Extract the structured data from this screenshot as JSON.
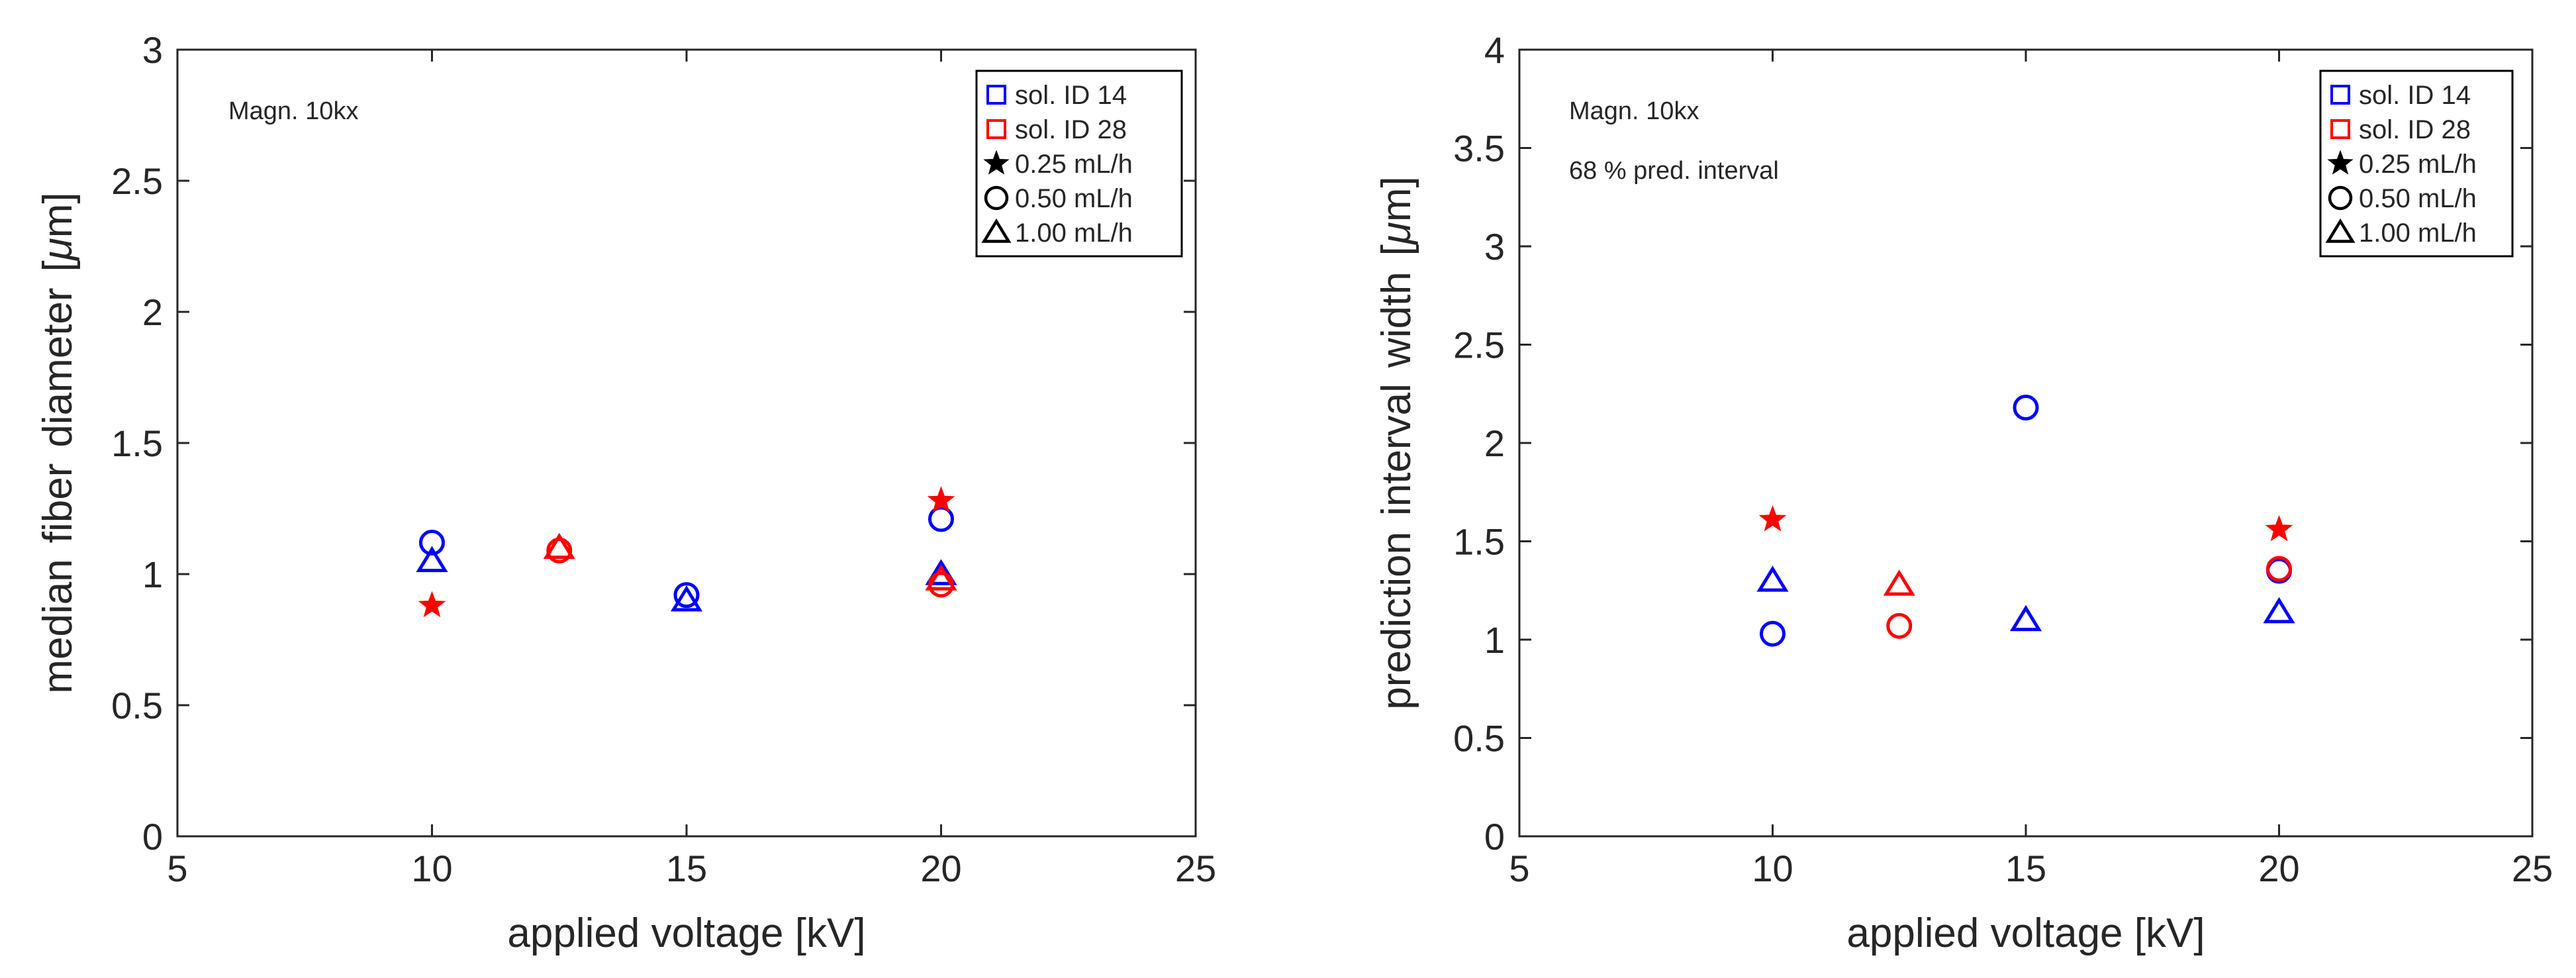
{
  "chart_data": [
    {
      "type": "scatter",
      "title": "",
      "xlabel": "applied voltage [kV]",
      "ylabel_parts": [
        "median",
        "fiber",
        "diameter",
        "[",
        "μ",
        "m]"
      ],
      "xlim": [
        5,
        25
      ],
      "ylim": [
        0,
        3
      ],
      "xticks": [
        5,
        10,
        15,
        20,
        25
      ],
      "xtick_labels": [
        "5",
        "10",
        "15",
        "20",
        "25"
      ],
      "yticks": [
        0,
        0.5,
        1,
        1.5,
        2,
        2.5,
        3
      ],
      "ytick_labels": [
        "0",
        "0.5",
        "1",
        "1.5",
        "2",
        "2.5",
        "3"
      ],
      "grid": false,
      "annotations": [
        "Magn. 10kx"
      ],
      "legend": {
        "placement": "top-right",
        "entries": [
          {
            "label": "sol. ID 14",
            "marker": "square",
            "color": "#0000ff"
          },
          {
            "label": "sol. ID 28",
            "marker": "square",
            "color": "#ff0000"
          },
          {
            "label": "0.25 mL/h",
            "marker": "star",
            "color": "#000000"
          },
          {
            "label": "0.50 mL/h",
            "marker": "circle",
            "color": "#000000"
          },
          {
            "label": "1.00 mL/h",
            "marker": "triangle",
            "color": "#000000"
          }
        ]
      },
      "series": [
        {
          "name": "sol. ID 14, 0.50 mL/h",
          "color": "#0000ff",
          "marker": "circle",
          "x": [
            10,
            15,
            20
          ],
          "y": [
            1.12,
            0.92,
            1.21
          ]
        },
        {
          "name": "sol. ID 14, 1.00 mL/h",
          "color": "#0000ff",
          "marker": "triangle",
          "x": [
            10,
            15,
            20
          ],
          "y": [
            1.05,
            0.9,
            1.0
          ]
        },
        {
          "name": "sol. ID 28, 0.25 mL/h",
          "color": "#ff0000",
          "marker": "star",
          "x": [
            10,
            20
          ],
          "y": [
            0.88,
            1.28
          ]
        },
        {
          "name": "sol. ID 28, 0.50 mL/h",
          "color": "#ff0000",
          "marker": "circle",
          "x": [
            12.5,
            20
          ],
          "y": [
            1.09,
            0.96
          ]
        },
        {
          "name": "sol. ID 28, 1.00 mL/h",
          "color": "#ff0000",
          "marker": "triangle",
          "x": [
            12.5,
            20
          ],
          "y": [
            1.1,
            0.98
          ]
        }
      ]
    },
    {
      "type": "scatter",
      "title": "",
      "xlabel": "applied voltage [kV]",
      "ylabel_parts": [
        "prediction",
        "interval",
        "width",
        "[",
        "μ",
        "m]"
      ],
      "xlim": [
        5,
        25
      ],
      "ylim": [
        0,
        4
      ],
      "xticks": [
        5,
        10,
        15,
        20,
        25
      ],
      "xtick_labels": [
        "5",
        "10",
        "15",
        "20",
        "25"
      ],
      "yticks": [
        0,
        0.5,
        1,
        1.5,
        2,
        2.5,
        3,
        3.5,
        4
      ],
      "ytick_labels": [
        "0",
        "0.5",
        "1",
        "1.5",
        "2",
        "2.5",
        "3",
        "3.5",
        "4"
      ],
      "grid": false,
      "annotations": [
        "Magn. 10kx",
        "68 % pred. interval"
      ],
      "legend": {
        "placement": "top-right",
        "entries": [
          {
            "label": "sol. ID 14",
            "marker": "square",
            "color": "#0000ff"
          },
          {
            "label": "sol. ID 28",
            "marker": "square",
            "color": "#ff0000"
          },
          {
            "label": "0.25 mL/h",
            "marker": "star",
            "color": "#000000"
          },
          {
            "label": "0.50 mL/h",
            "marker": "circle",
            "color": "#000000"
          },
          {
            "label": "1.00 mL/h",
            "marker": "triangle",
            "color": "#000000"
          }
        ]
      },
      "series": [
        {
          "name": "sol. ID 14, 0.50 mL/h",
          "color": "#0000ff",
          "marker": "circle",
          "x": [
            10,
            15,
            20
          ],
          "y": [
            1.03,
            2.18,
            1.35
          ]
        },
        {
          "name": "sol. ID 14, 1.00 mL/h",
          "color": "#0000ff",
          "marker": "triangle",
          "x": [
            10,
            15,
            20
          ],
          "y": [
            1.3,
            1.1,
            1.14
          ]
        },
        {
          "name": "sol. ID 28, 0.25 mL/h",
          "color": "#ff0000",
          "marker": "star",
          "x": [
            10,
            20
          ],
          "y": [
            1.61,
            1.56
          ]
        },
        {
          "name": "sol. ID 28, 0.50 mL/h",
          "color": "#ff0000",
          "marker": "circle",
          "x": [
            12.5,
            20
          ],
          "y": [
            1.07,
            1.36
          ]
        },
        {
          "name": "sol. ID 28, 1.00 mL/h",
          "color": "#ff0000",
          "marker": "triangle",
          "x": [
            12.5
          ],
          "y": [
            1.28
          ]
        }
      ]
    }
  ]
}
